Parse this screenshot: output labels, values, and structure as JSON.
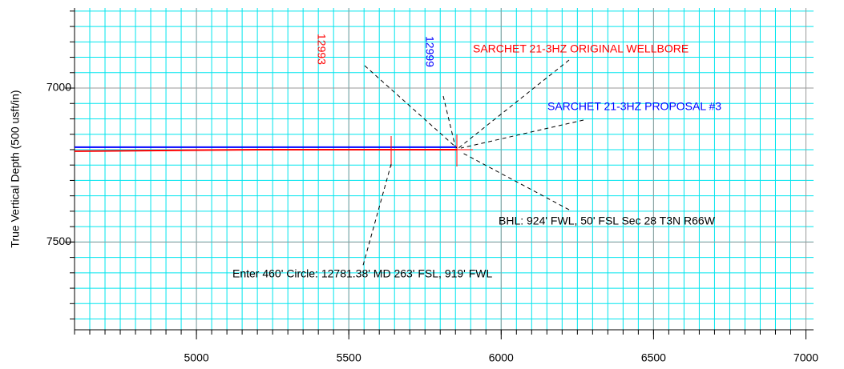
{
  "chart_data": {
    "type": "line",
    "y_label": "True Vertical Depth (500 usft/in)",
    "xlim": [
      4600,
      7025
    ],
    "ylim": [
      6740,
      7785
    ],
    "y_inverted": true,
    "xticks": [
      5000,
      5500,
      6000,
      6500,
      7000
    ],
    "yticks": [
      7000,
      7500
    ],
    "grid": true,
    "grid_color": "#00e5ee",
    "major_grid_color": "#999999",
    "series": [
      {
        "name": "SARCHET 21-3HZ ORIGINAL WELLBORE",
        "color": "#ff0000",
        "x": [
          4600,
          5200,
          5855
        ],
        "values": [
          7205,
          7200,
          7200
        ]
      },
      {
        "name": "SARCHET 21-3HZ PROPOSAL #3",
        "color": "#0000ff",
        "x": [
          4600,
          5855
        ],
        "values": [
          7192,
          7192
        ]
      }
    ],
    "annotations": [
      "12993",
      "12999",
      "BHL: 924' FWL, 50' FSL Sec 28 T3N R66W",
      "Enter 460' Circle: 12781.38' MD 263' FSL, 919' FWL"
    ]
  }
}
